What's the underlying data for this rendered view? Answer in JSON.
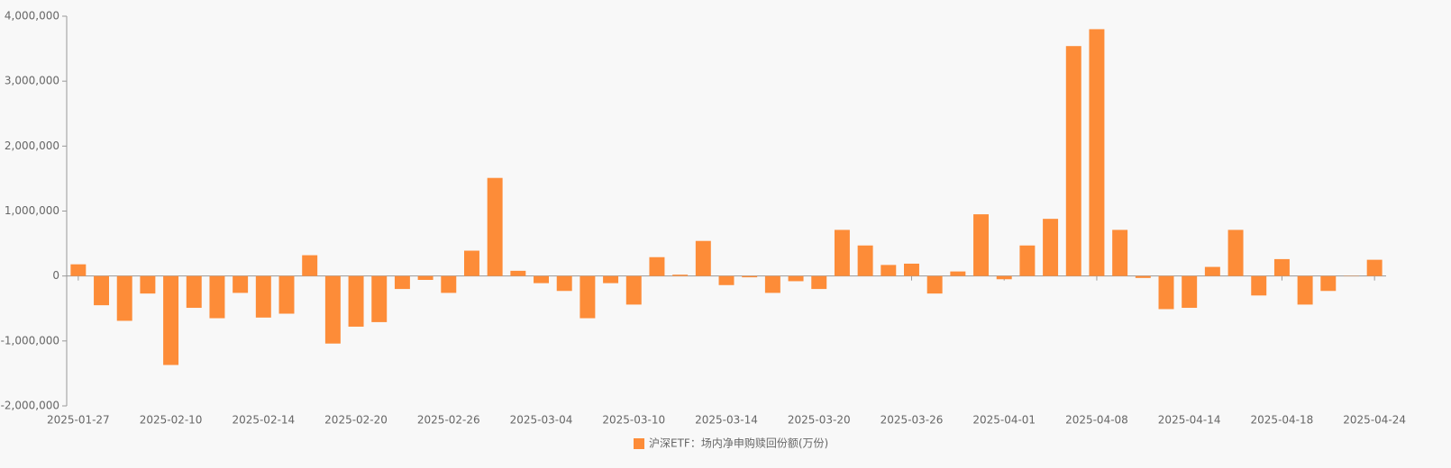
{
  "chart_data": {
    "type": "bar",
    "categories": [
      "2025-01-27",
      null,
      null,
      null,
      "2025-02-10",
      null,
      null,
      null,
      "2025-02-14",
      null,
      null,
      null,
      "2025-02-20",
      null,
      null,
      null,
      "2025-02-26",
      null,
      null,
      null,
      "2025-03-04",
      null,
      null,
      null,
      "2025-03-10",
      null,
      null,
      null,
      "2025-03-14",
      null,
      null,
      null,
      "2025-03-20",
      null,
      null,
      null,
      "2025-03-26",
      null,
      null,
      null,
      "2025-04-01",
      null,
      null,
      null,
      "2025-04-08",
      null,
      null,
      null,
      "2025-04-14",
      null,
      null,
      null,
      "2025-04-18",
      null,
      null,
      null,
      "2025-04-24"
    ],
    "series": [
      {
        "name": "沪深ETF：场内净申购赎回份额(万份)",
        "color": "#fd8c38",
        "values": [
          180000,
          -450000,
          -690000,
          -270000,
          -1370000,
          -490000,
          -650000,
          -260000,
          -640000,
          -580000,
          320000,
          -1040000,
          -780000,
          -710000,
          -200000,
          -60000,
          -260000,
          390000,
          1510000,
          80000,
          -110000,
          -230000,
          -650000,
          -110000,
          -440000,
          290000,
          20000,
          540000,
          -140000,
          -20000,
          -260000,
          -80000,
          -200000,
          710000,
          470000,
          170000,
          190000,
          -270000,
          70000,
          950000,
          -50000,
          470000,
          880000,
          3540000,
          3800000,
          710000,
          -30000,
          -510000,
          -490000,
          140000,
          710000,
          -300000,
          260000,
          -440000,
          -230000,
          -5000,
          250000
        ]
      }
    ],
    "ylim": [
      -2000000,
      4000000
    ],
    "yticks": [
      {
        "value": -2000000,
        "label": "-2,000,000"
      },
      {
        "value": -1000000,
        "label": "-1,000,000"
      },
      0,
      {
        "value": 1000000,
        "label": "1,000,000"
      },
      {
        "value": 2000000,
        "label": "2,000,000"
      },
      {
        "value": 3000000,
        "label": "3,000,000"
      },
      {
        "value": 4000000,
        "label": "4,000,000"
      }
    ],
    "grid": false,
    "legend": "bottom"
  }
}
